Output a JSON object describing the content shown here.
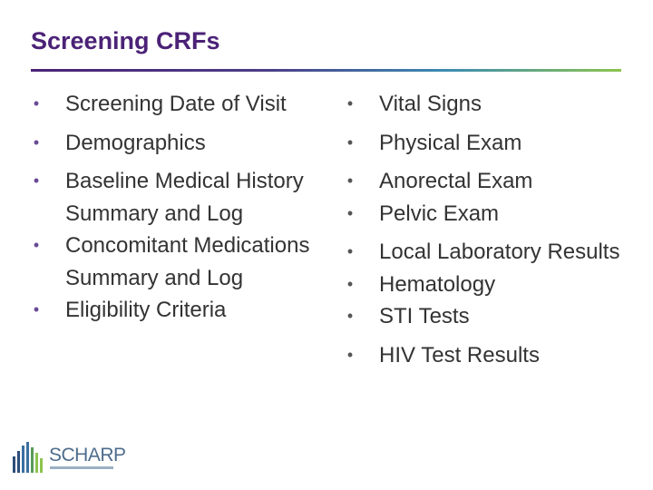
{
  "slide": {
    "title": "Screening CRFs"
  },
  "left_column": {
    "items": [
      {
        "label": "Screening Date of Visit"
      },
      {
        "label": "Demographics"
      },
      {
        "label": "Baseline Medical History Summary and Log"
      },
      {
        "label": "Concomitant Medications Summary and Log"
      },
      {
        "label": "Eligibility Criteria"
      }
    ]
  },
  "right_column": {
    "items": [
      {
        "label": "Vital Signs"
      },
      {
        "label": "Physical Exam"
      },
      {
        "label": "Anorectal Exam"
      },
      {
        "label": "Pelvic Exam"
      },
      {
        "label": "Local Laboratory Results"
      },
      {
        "label": "Hematology"
      },
      {
        "label": "STI Tests"
      },
      {
        "label": "HIV Test Results"
      }
    ]
  },
  "logo": {
    "text": "SCHARP",
    "icon": "bar-skyline-icon",
    "colors": [
      "#2e4d7a",
      "#3b6fa0",
      "#5a9a5a",
      "#8cc44e"
    ]
  },
  "colors": {
    "title": "#4b2277",
    "bullet": "#6a4a96",
    "text": "#333333"
  }
}
